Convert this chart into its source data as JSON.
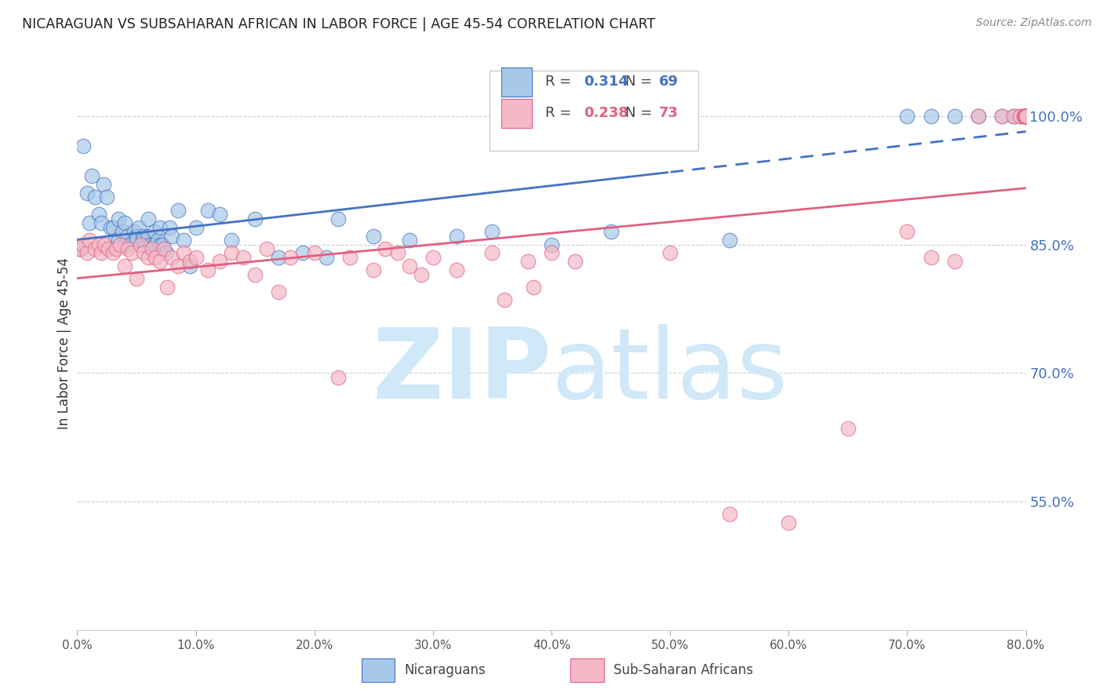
{
  "title": "NICARAGUAN VS SUBSAHARAN AFRICAN IN LABOR FORCE | AGE 45-54 CORRELATION CHART",
  "source": "Source: ZipAtlas.com",
  "ylabel": "In Labor Force | Age 45-54",
  "yticks_right": [
    55.0,
    70.0,
    85.0,
    100.0
  ],
  "blue_R": 0.314,
  "blue_N": 69,
  "pink_R": 0.238,
  "pink_N": 73,
  "blue_label": "Nicaraguans",
  "pink_label": "Sub-Saharan Africans",
  "blue_color": "#a8c8e8",
  "blue_line_color": "#4472c4",
  "pink_color": "#f4b8c8",
  "pink_line_color": "#e06080",
  "watermark_zip": "ZIP",
  "watermark_atlas": "atlas",
  "watermark_color": "#d0e8f8",
  "blue_scatter_x": [
    0.3,
    0.5,
    0.8,
    1.0,
    1.2,
    1.5,
    1.8,
    2.0,
    2.2,
    2.5,
    2.8,
    3.0,
    3.2,
    3.5,
    3.5,
    3.8,
    4.0,
    4.0,
    4.2,
    4.5,
    4.8,
    5.0,
    5.0,
    5.2,
    5.5,
    5.5,
    5.8,
    6.0,
    6.0,
    6.2,
    6.5,
    6.5,
    6.8,
    7.0,
    7.0,
    7.2,
    7.5,
    7.8,
    8.0,
    8.5,
    9.0,
    9.5,
    10.0,
    11.0,
    12.0,
    13.0,
    15.0,
    17.0,
    19.0,
    21.0,
    22.0,
    25.0,
    28.0,
    32.0,
    35.0,
    40.0,
    45.0,
    55.0,
    70.0,
    72.0,
    74.0,
    76.0,
    78.0,
    79.0,
    79.5,
    79.8,
    79.9,
    79.95,
    79.98
  ],
  "blue_scatter_y": [
    84.5,
    96.5,
    91.0,
    87.5,
    93.0,
    90.5,
    88.5,
    87.5,
    92.0,
    90.5,
    87.0,
    87.0,
    85.5,
    85.5,
    88.0,
    86.5,
    87.5,
    85.0,
    86.0,
    85.0,
    86.5,
    86.0,
    85.5,
    87.0,
    86.0,
    85.5,
    85.0,
    88.0,
    86.0,
    85.0,
    86.5,
    85.0,
    85.5,
    87.0,
    85.0,
    85.0,
    84.0,
    87.0,
    86.0,
    89.0,
    85.5,
    82.5,
    87.0,
    89.0,
    88.5,
    85.5,
    88.0,
    83.5,
    84.0,
    83.5,
    88.0,
    86.0,
    85.5,
    86.0,
    86.5,
    85.0,
    86.5,
    85.5,
    100.0,
    100.0,
    100.0,
    100.0,
    100.0,
    100.0,
    100.0,
    100.0,
    100.0,
    100.0,
    100.0
  ],
  "pink_scatter_x": [
    0.2,
    0.5,
    0.8,
    1.0,
    1.5,
    1.8,
    2.0,
    2.3,
    2.6,
    3.0,
    3.3,
    3.6,
    4.0,
    4.3,
    4.6,
    5.0,
    5.3,
    5.6,
    6.0,
    6.3,
    6.6,
    7.0,
    7.3,
    7.6,
    8.0,
    8.5,
    9.0,
    9.5,
    10.0,
    11.0,
    12.0,
    13.0,
    14.0,
    15.0,
    16.0,
    17.0,
    18.0,
    20.0,
    22.0,
    23.0,
    25.0,
    26.0,
    27.0,
    28.0,
    29.0,
    30.0,
    32.0,
    35.0,
    38.0,
    40.0,
    42.0,
    36.0,
    38.5,
    50.0,
    55.0,
    60.0,
    65.0,
    70.0,
    72.0,
    74.0,
    76.0,
    78.0,
    79.0,
    79.5,
    79.8,
    79.9,
    79.95,
    79.98,
    79.99,
    80.0,
    80.0,
    80.0,
    80.0
  ],
  "pink_scatter_y": [
    84.5,
    85.0,
    84.0,
    85.5,
    84.5,
    85.0,
    84.0,
    85.0,
    84.5,
    84.0,
    84.5,
    85.0,
    82.5,
    84.5,
    84.0,
    81.0,
    85.0,
    84.0,
    83.5,
    84.5,
    83.5,
    83.0,
    84.5,
    80.0,
    83.5,
    82.5,
    84.0,
    83.0,
    83.5,
    82.0,
    83.0,
    84.0,
    83.5,
    81.5,
    84.5,
    79.5,
    83.5,
    84.0,
    69.5,
    83.5,
    82.0,
    84.5,
    84.0,
    82.5,
    81.5,
    83.5,
    82.0,
    84.0,
    83.0,
    84.0,
    83.0,
    78.5,
    80.0,
    84.0,
    53.5,
    52.5,
    63.5,
    86.5,
    83.5,
    83.0,
    100.0,
    100.0,
    100.0,
    100.0,
    100.0,
    100.0,
    100.0,
    100.0,
    100.0,
    100.0,
    100.0,
    100.0,
    100.0
  ]
}
